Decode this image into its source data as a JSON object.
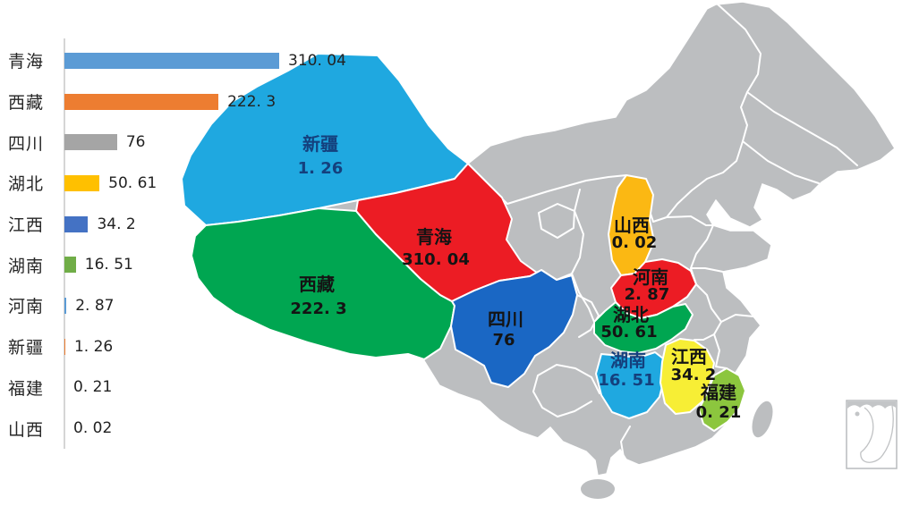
{
  "page": {
    "background": "#ffffff"
  },
  "chart_data": {
    "type": "bar",
    "orientation": "horizontal",
    "title": "",
    "categories": [
      "青海",
      "西藏",
      "四川",
      "湖北",
      "江西",
      "湖南",
      "河南",
      "新疆",
      "福建",
      "山西"
    ],
    "values": [
      310.04,
      222.3,
      76,
      50.61,
      34.2,
      16.51,
      2.87,
      1.26,
      0.21,
      0.02
    ],
    "display_values": [
      "310. 04",
      "222. 3",
      "76",
      "50. 61",
      "34. 2",
      "16. 51",
      "2. 87",
      "1. 26",
      "0. 21",
      "0. 02"
    ],
    "bar_colors": [
      "#5b9bd5",
      "#ed7d31",
      "#a5a5a5",
      "#ffc000",
      "#4472c4",
      "#70ad47",
      "#5b9bd5",
      "#ed7d31",
      "#a5a5a5",
      "#ffc000"
    ],
    "xlim": [
      0,
      400
    ],
    "grid": false,
    "legend": "none",
    "axis_color": "#d5d5d5"
  },
  "map": {
    "description": "China province choropleth, unhighlighted provinces gray",
    "base_color": "#bcbec0",
    "border_color": "#ffffff",
    "provinces": [
      {
        "id": "xinjiang",
        "name": "新疆",
        "value": 1.26,
        "display_value": "1. 26",
        "color": "#1fa8e0",
        "label_color": "#14407d"
      },
      {
        "id": "xizang",
        "name": "西藏",
        "value": 222.3,
        "display_value": "222. 3",
        "color": "#00a651",
        "label_color": "#141414"
      },
      {
        "id": "qinghai",
        "name": "青海",
        "value": 310.04,
        "display_value": "310. 04",
        "color": "#ec1c24",
        "label_color": "#141414"
      },
      {
        "id": "sichuan",
        "name": "四川",
        "value": 76,
        "display_value": "76",
        "color": "#1a67c4",
        "label_color": "#141414"
      },
      {
        "id": "shanxi",
        "name": "山西",
        "value": 0.02,
        "display_value": "0. 02",
        "color": "#fbb813",
        "label_color": "#141414"
      },
      {
        "id": "henan",
        "name": "河南",
        "value": 2.87,
        "display_value": "2. 87",
        "color": "#ec1c24",
        "label_color": "#141414"
      },
      {
        "id": "hubei",
        "name": "湖北",
        "value": 50.61,
        "display_value": "50. 61",
        "color": "#00a651",
        "label_color": "#141414"
      },
      {
        "id": "hunan",
        "name": "湖南",
        "value": 16.51,
        "display_value": "16. 51",
        "color": "#1fa8e0",
        "label_color": "#14407d"
      },
      {
        "id": "jiangxi",
        "name": "江西",
        "value": 34.2,
        "display_value": "34. 2",
        "color": "#f7ee35",
        "label_color": "#141414"
      },
      {
        "id": "fujian",
        "name": "福建",
        "value": 0.21,
        "display_value": "0. 21",
        "color": "#8cc63e",
        "label_color": "#141414"
      }
    ]
  }
}
